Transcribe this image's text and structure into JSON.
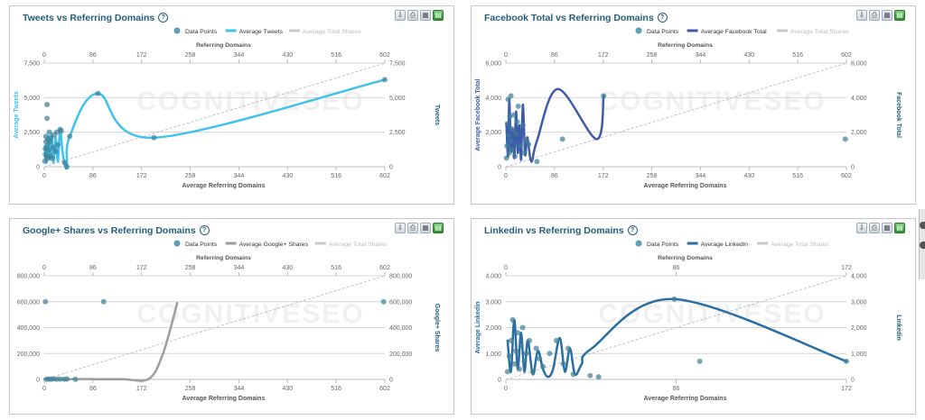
{
  "watermark": {
    "light": "COGNITIVE",
    "bold": "SEO"
  },
  "toolbar": {
    "icons": [
      "download-icon",
      "print-icon",
      "table-icon",
      "export-csv-icon"
    ],
    "glyphs": [
      "⇩",
      "⎙",
      "▦",
      "▤"
    ]
  },
  "panels": [
    {
      "id": "tweets",
      "title": "Tweets vs Referring Domains",
      "help": "?",
      "legend": [
        "Data Points",
        "Average Tweets",
        "Average Total Shares"
      ],
      "color": "#40c2ec",
      "chart_data": {
        "type": "scatter",
        "title": "Tweets vs Referring Domains",
        "xlabel": "Average Referring Domains",
        "x2label": "Referring Domains",
        "ylabel": "Average Tweets",
        "y2label": "Tweets",
        "xlim": [
          0,
          602
        ],
        "ylim": [
          0,
          7500
        ],
        "xticks": [
          "0",
          "86",
          "172",
          "258",
          "344",
          "430",
          "516",
          "602"
        ],
        "yticks": [
          "0",
          "2,500",
          "5,000",
          "7,500"
        ],
        "y2ticks": [
          "0",
          "2,500",
          "5,000",
          "7,500"
        ],
        "series": [
          {
            "name": "Data Points",
            "kind": "scatter",
            "points": [
              [
                1,
                400
              ],
              [
                2,
                900
              ],
              [
                2,
                1300
              ],
              [
                3,
                1800
              ],
              [
                3,
                2200
              ],
              [
                4,
                700
              ],
              [
                5,
                1500
              ],
              [
                5,
                3500
              ],
              [
                5,
                4500
              ],
              [
                6,
                2000
              ],
              [
                7,
                600
              ],
              [
                8,
                1200
              ],
              [
                9,
                2500
              ],
              [
                10,
                1800
              ],
              [
                11,
                800
              ],
              [
                12,
                2100
              ],
              [
                14,
                600
              ],
              [
                16,
                1400
              ],
              [
                18,
                2300
              ],
              [
                20,
                1100
              ],
              [
                22,
                2500
              ],
              [
                24,
                1600
              ],
              [
                28,
                2700
              ],
              [
                30,
                2600
              ],
              [
                36,
                300
              ],
              [
                40,
                0
              ],
              [
                45,
                2200
              ],
              [
                95,
                5300
              ],
              [
                194,
                2100
              ],
              [
                602,
                6300
              ]
            ]
          },
          {
            "name": "Average Tweets",
            "kind": "line",
            "points": [
              [
                1,
                1500
              ],
              [
                4,
                300
              ],
              [
                7,
                2200
              ],
              [
                10,
                600
              ],
              [
                13,
                2400
              ],
              [
                16,
                300
              ],
              [
                20,
                2100
              ],
              [
                24,
                400
              ],
              [
                28,
                2700
              ],
              [
                32,
                1200
              ],
              [
                36,
                200
              ],
              [
                40,
                0
              ],
              [
                45,
                2200
              ],
              [
                95,
                5300
              ],
              [
                194,
                2100
              ],
              [
                602,
                6300
              ]
            ]
          },
          {
            "name": "Average Total Shares",
            "kind": "dashed",
            "points": [
              [
                0,
                0
              ],
              [
                602,
                7500
              ]
            ]
          }
        ]
      }
    },
    {
      "id": "facebook",
      "title": "Facebook Total vs Referring Domains",
      "help": "?",
      "legend": [
        "Data Points",
        "Average Facebook Total",
        "Average Total Shares"
      ],
      "color": "#3d5ba9",
      "chart_data": {
        "type": "scatter",
        "title": "Facebook Total vs Referring Domains",
        "xlabel": "Average Referring Domains",
        "x2label": "Referring Domains",
        "ylabel": "Average Facebook Total",
        "y2label": "Facebook Total",
        "xlim": [
          0,
          602
        ],
        "ylim": [
          0,
          6000
        ],
        "xticks": [
          "0",
          "86",
          "172",
          "258",
          "344",
          "430",
          "516",
          "602"
        ],
        "yticks": [
          "0",
          "2,000",
          "4,000",
          "6,000"
        ],
        "y2ticks": [
          "0",
          "2,000",
          "4,000",
          "6,000"
        ],
        "series": [
          {
            "name": "Data Points",
            "kind": "scatter",
            "points": [
              [
                1,
                500
              ],
              [
                2,
                1200
              ],
              [
                3,
                2500
              ],
              [
                4,
                3900
              ],
              [
                5,
                1800
              ],
              [
                6,
                800
              ],
              [
                7,
                2900
              ],
              [
                8,
                1500
              ],
              [
                9,
                4100
              ],
              [
                10,
                2200
              ],
              [
                12,
                1000
              ],
              [
                14,
                3000
              ],
              [
                16,
                600
              ],
              [
                18,
                1900
              ],
              [
                20,
                2600
              ],
              [
                22,
                3500
              ],
              [
                25,
                1200
              ],
              [
                30,
                2400
              ],
              [
                33,
                800
              ],
              [
                36,
                1500
              ],
              [
                40,
                1300
              ],
              [
                55,
                300
              ],
              [
                100,
                1600
              ],
              [
                173,
                4100
              ],
              [
                600,
                1600
              ]
            ]
          },
          {
            "name": "Average Facebook Total",
            "kind": "line",
            "points": [
              [
                1,
                2500
              ],
              [
                4,
                600
              ],
              [
                6,
                3900
              ],
              [
                9,
                900
              ],
              [
                12,
                2200
              ],
              [
                15,
                500
              ],
              [
                18,
                3200
              ],
              [
                21,
                800
              ],
              [
                24,
                2400
              ],
              [
                27,
                400
              ],
              [
                30,
                3600
              ],
              [
                34,
                700
              ],
              [
                38,
                1700
              ],
              [
                45,
                300
              ],
              [
                55,
                1500
              ],
              [
                92,
                4500
              ],
              [
                160,
                1600
              ],
              [
                173,
                4100
              ]
            ]
          },
          {
            "name": "Average Total Shares",
            "kind": "dashed",
            "points": [
              [
                0,
                0
              ],
              [
                602,
                6000
              ]
            ]
          }
        ]
      }
    },
    {
      "id": "googleplus",
      "title": "Google+ Shares vs Referring Domains",
      "help": "?",
      "legend": [
        "Data Points",
        "Average Google+ Shares",
        "Average Total Shares"
      ],
      "color": "#9e9e9e",
      "chart_data": {
        "type": "scatter",
        "title": "Google+ Shares vs Referring Domains",
        "xlabel": "Average Referring Domains",
        "x2label": "Referring Domains",
        "ylabel": "",
        "y2label": "Google+ Shares",
        "xlim": [
          0,
          602
        ],
        "ylim": [
          0,
          800000
        ],
        "xticks": [
          "0",
          "86",
          "172",
          "258",
          "344",
          "430",
          "516",
          "602"
        ],
        "yticks": [
          "0",
          "200,000",
          "400,000",
          "600,000",
          "800,000"
        ],
        "y2ticks": [
          "0",
          "200,000",
          "400,000",
          "600,000",
          "800,000"
        ],
        "series": [
          {
            "name": "Data Points",
            "kind": "scatter",
            "points": [
              [
                2,
                600000
              ],
              [
                4,
                2000
              ],
              [
                8,
                3000
              ],
              [
                12,
                2000
              ],
              [
                16,
                4000
              ],
              [
                22,
                1500
              ],
              [
                28,
                3000
              ],
              [
                35,
                2000
              ],
              [
                40,
                3500
              ],
              [
                55,
                1000
              ],
              [
                105,
                600000
              ],
              [
                600,
                600000
              ]
            ]
          },
          {
            "name": "Average Google+ Shares",
            "kind": "line",
            "points": [
              [
                0,
                3000
              ],
              [
                30,
                1500
              ],
              [
                60,
                2500
              ],
              [
                100,
                2000
              ],
              [
                140,
                2000
              ],
              [
                185,
                5000
              ],
              [
                210,
                200000
              ],
              [
                235,
                590000
              ]
            ]
          },
          {
            "name": "Average Total Shares",
            "kind": "dashed",
            "points": [
              [
                0,
                0
              ],
              [
                602,
                800000
              ]
            ]
          }
        ]
      }
    },
    {
      "id": "linkedin",
      "title": "Linkedin vs Referring Domains",
      "help": "?",
      "legend": [
        "Data Points",
        "Average Linkedin",
        "Average Total Shares"
      ],
      "color": "#2a6ea3",
      "chart_data": {
        "type": "scatter",
        "title": "Linkedin vs Referring Domains",
        "xlabel": "Average Referring Domains",
        "x2label": "Referring Domains",
        "ylabel": "Average Linkedin",
        "y2label": "Linkedin",
        "xlim": [
          0,
          202
        ],
        "ylim": [
          0,
          4000
        ],
        "xticks": [
          "0",
          "86",
          "172"
        ],
        "yticks": [
          "0",
          "1,000",
          "2,000",
          "3,000",
          "4,000"
        ],
        "y2ticks": [
          "0",
          "1,000",
          "2,000",
          "3,000",
          "4,000"
        ],
        "series": [
          {
            "name": "Data Points",
            "kind": "scatter",
            "points": [
              [
                1,
                300
              ],
              [
                2,
                900
              ],
              [
                3,
                1500
              ],
              [
                4,
                2300
              ],
              [
                5,
                600
              ],
              [
                6,
                1100
              ],
              [
                7,
                1800
              ],
              [
                8,
                400
              ],
              [
                9,
                1300
              ],
              [
                10,
                2000
              ],
              [
                11,
                700
              ],
              [
                12,
                1000
              ],
              [
                14,
                1500
              ],
              [
                16,
                300
              ],
              [
                18,
                1200
              ],
              [
                20,
                800
              ],
              [
                22,
                500
              ],
              [
                26,
                1000
              ],
              [
                30,
                1500
              ],
              [
                34,
                600
              ],
              [
                37,
                1200
              ],
              [
                40,
                200
              ],
              [
                50,
                150
              ],
              [
                55,
                100
              ],
              [
                100,
                3100
              ],
              [
                115,
                700
              ],
              [
                202,
                700
              ]
            ]
          },
          {
            "name": "Average Linkedin",
            "kind": "line",
            "points": [
              [
                1,
                1500
              ],
              [
                3,
                300
              ],
              [
                5,
                2300
              ],
              [
                7,
                400
              ],
              [
                9,
                1800
              ],
              [
                11,
                300
              ],
              [
                13,
                1500
              ],
              [
                16,
                200
              ],
              [
                19,
                1100
              ],
              [
                22,
                400
              ],
              [
                25,
                100
              ],
              [
                28,
                400
              ],
              [
                32,
                1600
              ],
              [
                35,
                300
              ],
              [
                38,
                1200
              ],
              [
                41,
                200
              ],
              [
                45,
                600
              ],
              [
                51,
                1200
              ],
              [
                100,
                3100
              ],
              [
                202,
                700
              ]
            ]
          },
          {
            "name": "Average Total Shares",
            "kind": "dashed",
            "points": [
              [
                0,
                0
              ],
              [
                202,
                4000
              ]
            ]
          }
        ]
      }
    }
  ]
}
